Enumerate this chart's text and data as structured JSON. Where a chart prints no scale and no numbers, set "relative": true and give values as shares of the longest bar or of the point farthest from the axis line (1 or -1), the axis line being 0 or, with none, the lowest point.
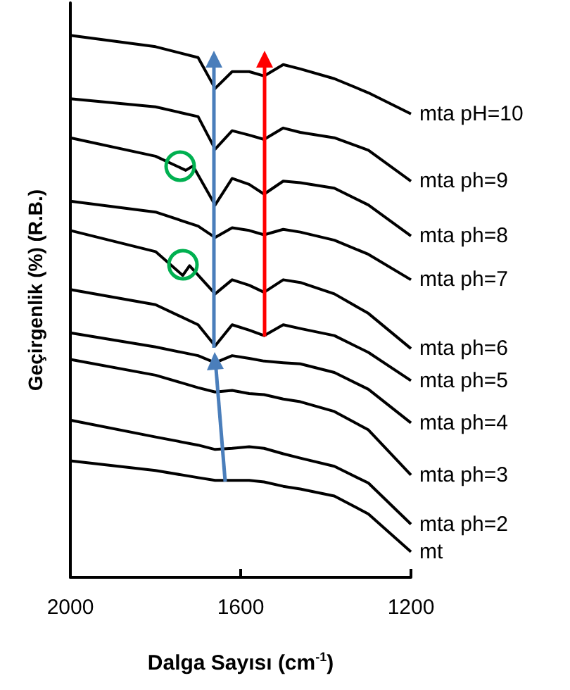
{
  "chart_data": {
    "type": "line",
    "relative": true,
    "xlabel": "Dalga Sayısı (cm$^{-1}$)",
    "ylabel": "Geçirgenlik (%) (R.B.)",
    "xlim": [
      2000,
      1200
    ],
    "xticks": [
      2000,
      1600,
      1200
    ],
    "marker": "none",
    "grid": false,
    "legend": false,
    "x": [
      2000,
      1800,
      1700,
      1660,
      1620,
      1580,
      1545,
      1500,
      1460,
      1380,
      1300,
      1200
    ],
    "series": [
      {
        "name": "mta pH=10",
        "color": "#000000",
        "values": [
          1.0,
          0.979,
          0.959,
          0.902,
          0.933,
          0.933,
          0.925,
          0.946,
          0.938,
          0.92,
          0.894,
          0.855
        ]
      },
      {
        "name": "mta ph=9",
        "color": "#000000",
        "values": [
          0.883,
          0.868,
          0.85,
          0.79,
          0.824,
          0.816,
          0.808,
          0.829,
          0.821,
          0.811,
          0.788,
          0.731
        ]
      },
      {
        "name": "mta ph=8",
        "color": "#000000",
        "x": [
          2000,
          1800,
          1729,
          1712,
          1660,
          1620,
          1580,
          1545,
          1500,
          1460,
          1380,
          1300,
          1200
        ],
        "values": [
          0.811,
          0.777,
          0.751,
          0.759,
          0.687,
          0.736,
          0.725,
          0.707,
          0.731,
          0.728,
          0.718,
          0.687,
          0.63
        ]
      },
      {
        "name": "mta ph=7",
        "color": "#000000",
        "values": [
          0.694,
          0.674,
          0.648,
          0.627,
          0.645,
          0.64,
          0.632,
          0.642,
          0.637,
          0.622,
          0.596,
          0.549
        ]
      },
      {
        "name": "mta ph=6",
        "color": "#000000",
        "x": [
          2000,
          1800,
          1736,
          1720,
          1660,
          1620,
          1580,
          1545,
          1500,
          1460,
          1380,
          1300,
          1200
        ],
        "values": [
          0.64,
          0.601,
          0.557,
          0.575,
          0.523,
          0.549,
          0.539,
          0.526,
          0.549,
          0.544,
          0.523,
          0.487,
          0.422
        ]
      },
      {
        "name": "mta ph=5",
        "color": "#000000",
        "values": [
          0.531,
          0.503,
          0.466,
          0.427,
          0.466,
          0.456,
          0.446,
          0.466,
          0.459,
          0.446,
          0.415,
          0.363
        ]
      },
      {
        "name": "mta ph=4",
        "color": "#000000",
        "values": [
          0.451,
          0.425,
          0.409,
          0.396,
          0.409,
          0.404,
          0.399,
          0.396,
          0.394,
          0.378,
          0.347,
          0.285
        ]
      },
      {
        "name": "mta ph=3",
        "color": "#000000",
        "values": [
          0.402,
          0.373,
          0.35,
          0.342,
          0.345,
          0.339,
          0.337,
          0.329,
          0.324,
          0.306,
          0.272,
          0.189
        ]
      },
      {
        "name": "mta ph=2",
        "color": "#000000",
        "values": [
          0.29,
          0.259,
          0.244,
          0.236,
          0.238,
          0.241,
          0.238,
          0.228,
          0.22,
          0.205,
          0.174,
          0.098
        ]
      },
      {
        "name": "mt",
        "color": "#000000",
        "values": [
          0.215,
          0.197,
          0.184,
          0.179,
          0.179,
          0.179,
          0.176,
          0.168,
          0.163,
          0.15,
          0.117,
          0.047
        ]
      }
    ]
  }
}
